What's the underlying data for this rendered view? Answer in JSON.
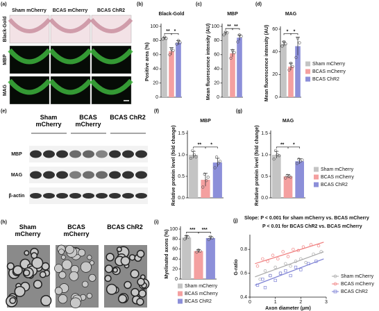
{
  "images": [
    {
      "panel": "(a)",
      "columns": [
        "Sham mCherry",
        "BCAS mCherry",
        "BCAS ChR2"
      ],
      "rows": [
        "Black-Gold",
        "MBP",
        "MAG"
      ]
    },
    {
      "panel": "(e)",
      "columns": [
        "Sham mCherry",
        "BCAS mCherry",
        "BCAS ChR2"
      ],
      "rows": [
        "MBP",
        "MAG",
        "β-actin"
      ]
    },
    {
      "panel": "(h)",
      "columns": [
        "Sham mCherry",
        "BCAS mCherry",
        "BCAS ChR2"
      ]
    }
  ],
  "chart_data": [
    {
      "type": "bar",
      "panel": "(b)",
      "title": "Black-Gold",
      "ylabel": "Positive area (%)",
      "colors": [
        "#c4c4c4",
        "#f4a0a0",
        "#8c8fd9"
      ],
      "values": [
        83,
        65,
        77
      ],
      "errors": [
        2,
        5,
        3
      ],
      "points": [
        [
          82,
          85,
          83
        ],
        [
          60,
          68,
          66
        ],
        [
          75,
          80,
          77
        ]
      ],
      "ylim": [
        0,
        100
      ],
      "yticks": [
        0,
        20,
        40,
        60,
        80,
        100
      ],
      "annotations": [
        "**",
        "*"
      ]
    },
    {
      "type": "bar",
      "panel": "(c)",
      "title": "MBP",
      "ylabel": "Mean fluorescence intensity (AU)",
      "colors": [
        "#c4c4c4",
        "#f4a0a0",
        "#8c8fd9"
      ],
      "values": [
        90,
        62,
        84
      ],
      "errors": [
        2,
        5,
        4
      ],
      "points": [
        [
          88,
          92,
          91
        ],
        [
          55,
          66,
          63
        ],
        [
          78,
          88,
          86
        ]
      ],
      "ylim": [
        0,
        100
      ],
      "yticks": [
        0,
        20,
        40,
        60,
        80,
        100
      ],
      "annotations": [
        "**",
        "**"
      ]
    },
    {
      "type": "bar",
      "panel": "(d)",
      "title": "MAG",
      "ylabel": "Mean fluorescence intensity (AU)",
      "colors": [
        "#c4c4c4",
        "#f4a0a0",
        "#8c8fd9"
      ],
      "values": [
        47,
        27,
        45
      ],
      "errors": [
        2,
        3,
        8
      ],
      "points": [
        [
          45,
          49,
          47
        ],
        [
          24,
          30,
          27
        ],
        [
          35,
          52,
          48
        ]
      ],
      "ylim": [
        0,
        60
      ],
      "yticks": [
        0,
        20,
        40,
        60
      ],
      "annotations": [
        "*",
        "*"
      ],
      "legend": [
        "Sham mCherry",
        "BCAS mCherry",
        "BCAS ChR2"
      ]
    },
    {
      "type": "bar",
      "panel": "(f)",
      "title": "MBP",
      "ylabel": "Relative protein level (fold change)",
      "colors": [
        "#c4c4c4",
        "#f4a0a0",
        "#8c8fd9"
      ],
      "values": [
        1.0,
        0.42,
        0.82
      ],
      "errors": [
        0.08,
        0.15,
        0.1
      ],
      "points": [
        [
          0.92,
          1.1,
          1.0,
          0.95
        ],
        [
          0.25,
          0.55,
          0.4,
          0.48
        ],
        [
          0.7,
          0.95,
          0.8,
          0.85
        ]
      ],
      "ylim": [
        0,
        1.5
      ],
      "yticks": [
        {
          "value": 0,
          "label": "0.0"
        },
        0.5,
        {
          "value": 1,
          "label": "1.0"
        },
        1.5
      ],
      "annotations": [
        "**",
        "*"
      ]
    },
    {
      "type": "bar",
      "panel": "(g)",
      "title": "MAG",
      "ylabel": "Relative protein level (fold change)",
      "colors": [
        "#c4c4c4",
        "#f4a0a0",
        "#8c8fd9"
      ],
      "values": [
        1.0,
        0.5,
        0.85
      ],
      "errors": [
        0.08,
        0.04,
        0.06
      ],
      "points": [
        [
          0.9,
          1.1,
          1.0,
          0.98
        ],
        [
          0.46,
          0.52,
          0.5,
          0.48
        ],
        [
          0.8,
          0.9,
          0.85,
          0.88
        ]
      ],
      "ylim": [
        0,
        1.5
      ],
      "yticks": [
        {
          "value": 0,
          "label": "0.0"
        },
        0.5,
        {
          "value": 1,
          "label": "1.0"
        },
        1.5
      ],
      "annotations": [
        "**",
        "*"
      ],
      "legend": [
        "Sham mCherry",
        "BCAS mCherry",
        "BCAS ChR2"
      ]
    },
    {
      "type": "bar",
      "panel": "(i)",
      "ylabel": "Myelinated axons (%)",
      "colors": [
        "#c4c4c4",
        "#f4a0a0",
        "#8c8fd9"
      ],
      "values": [
        83,
        56,
        82
      ],
      "errors": [
        4,
        3,
        3
      ],
      "points": [
        [
          80,
          86,
          84
        ],
        [
          54,
          58,
          56
        ],
        [
          79,
          85,
          82
        ]
      ],
      "ylim": [
        0,
        100
      ],
      "yticks": [
        0,
        20,
        40,
        60,
        80,
        100
      ],
      "annotations": [
        "***",
        "***"
      ],
      "legend": [
        "Sham mCherry",
        "BCAS mCherry",
        "BCAS ChR2"
      ]
    },
    {
      "type": "scatter",
      "panel": "(j)",
      "annotations": [
        "Slope: P < 0.001 for sham mCherry vs. BCAS mCherry",
        "P < 0.01 for BCAS ChR2 vs. BCAS mCherry"
      ],
      "xlabel": "Axon diameter (μm)",
      "ylabel": "G-ratio",
      "xlim": [
        0,
        3
      ],
      "xticks": [
        0,
        1,
        2,
        3
      ],
      "ylim": [
        0.4,
        0.9
      ],
      "yticks": [
        0.4,
        0.6,
        0.8
      ],
      "series": [
        {
          "name": "Sham mCherry",
          "color": "#a8a8a8",
          "marker": "circle",
          "x": [
            0.4,
            0.6,
            0.8,
            1.0,
            1.2,
            1.4,
            1.6,
            1.8,
            2.0,
            2.2,
            2.5,
            2.8
          ],
          "y": [
            0.55,
            0.62,
            0.58,
            0.65,
            0.6,
            0.68,
            0.66,
            0.7,
            0.72,
            0.69,
            0.76,
            0.78
          ],
          "trend": {
            "x": [
              0.2,
              2.9
            ],
            "y": [
              0.57,
              0.78
            ]
          }
        },
        {
          "name": "BCAS mCherry",
          "color": "#f08080",
          "marker": "circle",
          "x": [
            0.3,
            0.5,
            0.7,
            0.9,
            1.1,
            1.3,
            1.5,
            1.7,
            1.9,
            2.1,
            2.4,
            2.7
          ],
          "y": [
            0.66,
            0.72,
            0.7,
            0.75,
            0.72,
            0.78,
            0.74,
            0.8,
            0.79,
            0.82,
            0.84,
            0.83
          ],
          "trend": {
            "x": [
              0.2,
              2.9
            ],
            "y": [
              0.68,
              0.86
            ]
          }
        },
        {
          "name": "BCAS ChR2",
          "color": "#7c80d4",
          "marker": "square",
          "x": [
            0.3,
            0.5,
            0.6,
            0.8,
            1.0,
            1.2,
            1.4,
            1.6,
            1.8,
            2.0,
            2.3,
            2.6
          ],
          "y": [
            0.5,
            0.55,
            0.48,
            0.58,
            0.54,
            0.6,
            0.62,
            0.58,
            0.65,
            0.63,
            0.68,
            0.7
          ],
          "trend": {
            "x": [
              0.2,
              2.9
            ],
            "y": [
              0.5,
              0.72
            ]
          }
        }
      ]
    }
  ]
}
